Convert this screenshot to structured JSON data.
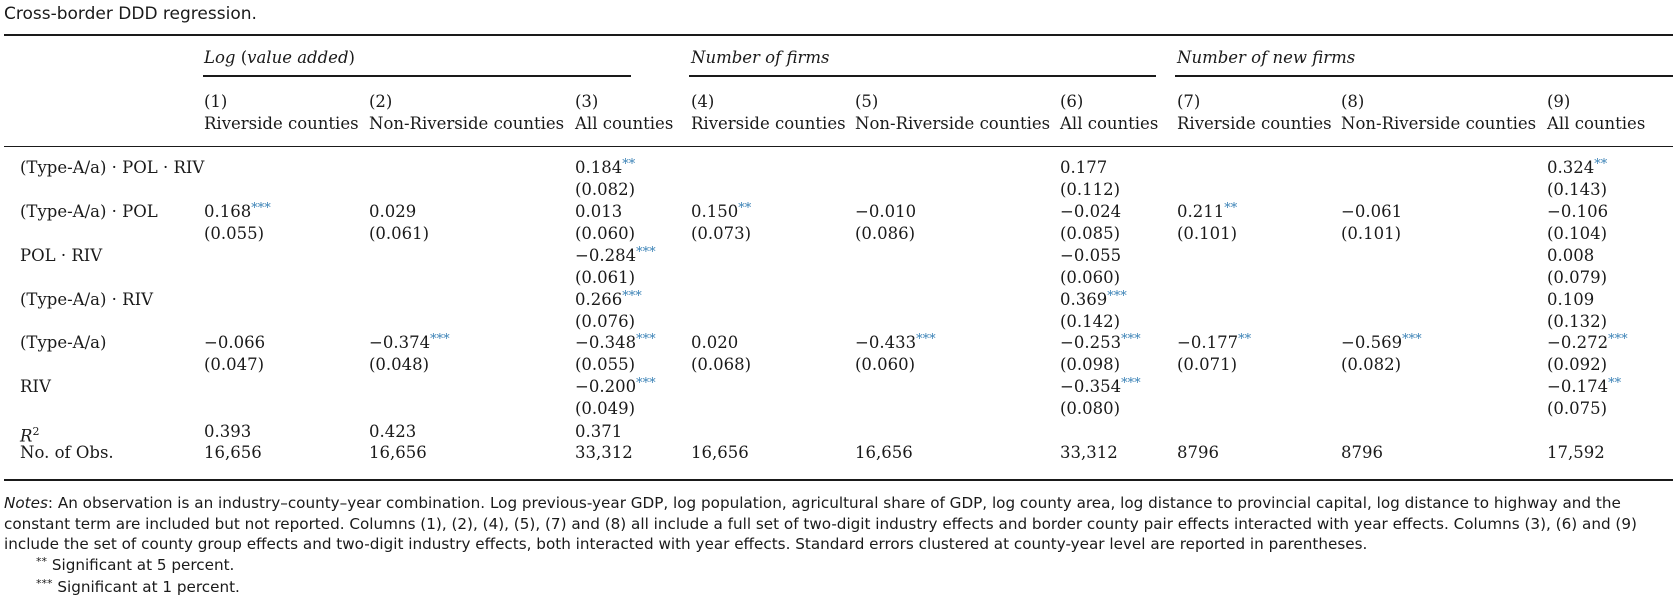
{
  "caption": "Cross-border DDD regression.",
  "groups": [
    {
      "label": "Log",
      "label_extra": " (value added)"
    },
    {
      "label": "Number of firms",
      "label_extra": ""
    },
    {
      "label": "Number of new firms",
      "label_extra": ""
    }
  ],
  "columns": [
    {
      "num": "(1)",
      "name": "Riverside counties"
    },
    {
      "num": "(2)",
      "name": "Non-Riverside counties"
    },
    {
      "num": "(3)",
      "name": "All counties"
    },
    {
      "num": "(4)",
      "name": "Riverside counties"
    },
    {
      "num": "(5)",
      "name": "Non-Riverside counties"
    },
    {
      "num": "(6)",
      "name": "All counties"
    },
    {
      "num": "(7)",
      "name": "Riverside counties"
    },
    {
      "num": "(8)",
      "name": "Non-Riverside counties"
    },
    {
      "num": "(9)",
      "name": "All counties"
    }
  ],
  "rows": [
    {
      "label": "(Type-A/a) · POL · RIV",
      "coef": [
        "",
        "",
        "0.184",
        "",
        "",
        "0.177",
        "",
        "",
        "0.324"
      ],
      "stars": [
        "",
        "",
        "**",
        "",
        "",
        "",
        "",
        "",
        "**"
      ],
      "se": [
        "",
        "",
        "(0.082)",
        "",
        "",
        "(0.112)",
        "",
        "",
        "(0.143)"
      ]
    },
    {
      "label": "(Type-A/a) · POL",
      "coef": [
        "0.168",
        "0.029",
        "0.013",
        "0.150",
        "−0.010",
        "−0.024",
        "0.211",
        "−0.061",
        "−0.106"
      ],
      "stars": [
        "***",
        "",
        "",
        "**",
        "",
        "",
        "**",
        "",
        ""
      ],
      "se": [
        "(0.055)",
        "(0.061)",
        "(0.060)",
        "(0.073)",
        "(0.086)",
        "(0.085)",
        "(0.101)",
        "(0.101)",
        "(0.104)"
      ]
    },
    {
      "label": "POL · RIV",
      "coef": [
        "",
        "",
        "−0.284",
        "",
        "",
        "−0.055",
        "",
        "",
        "0.008"
      ],
      "stars": [
        "",
        "",
        "***",
        "",
        "",
        "",
        "",
        "",
        ""
      ],
      "se": [
        "",
        "",
        "(0.061)",
        "",
        "",
        "(0.060)",
        "",
        "",
        "(0.079)"
      ]
    },
    {
      "label": "(Type-A/a) · RIV",
      "coef": [
        "",
        "",
        "0.266",
        "",
        "",
        "0.369",
        "",
        "",
        "0.109"
      ],
      "stars": [
        "",
        "",
        "***",
        "",
        "",
        "***",
        "",
        "",
        ""
      ],
      "se": [
        "",
        "",
        "(0.076)",
        "",
        "",
        "(0.142)",
        "",
        "",
        "(0.132)"
      ]
    },
    {
      "label": "(Type-A/a)",
      "coef": [
        "−0.066",
        "−0.374",
        "−0.348",
        "0.020",
        "−0.433",
        "−0.253",
        "−0.177",
        "−0.569",
        "−0.272"
      ],
      "stars": [
        "",
        "***",
        "***",
        "",
        "***",
        "***",
        "**",
        "***",
        "***"
      ],
      "se": [
        "(0.047)",
        "(0.048)",
        "(0.055)",
        "(0.068)",
        "(0.060)",
        "(0.098)",
        "(0.071)",
        "(0.082)",
        "(0.092)"
      ]
    },
    {
      "label": "RIV",
      "coef": [
        "",
        "",
        "−0.200",
        "",
        "",
        "−0.354",
        "",
        "",
        "−0.174"
      ],
      "stars": [
        "",
        "",
        "***",
        "",
        "",
        "***",
        "",
        "",
        "**"
      ],
      "se": [
        "",
        "",
        "(0.049)",
        "",
        "",
        "(0.080)",
        "",
        "",
        "(0.075)"
      ]
    }
  ],
  "r2": {
    "label": "R",
    "sup": "2",
    "values": [
      "0.393",
      "0.423",
      "0.371",
      "",
      "",
      "",
      "",
      "",
      ""
    ]
  },
  "nobs": {
    "label": "No. of Obs.",
    "values": [
      "16,656",
      "16,656",
      "33,312",
      "16,656",
      "16,656",
      "33,312",
      "8796",
      "8796",
      "17,592"
    ]
  },
  "notes": {
    "label": "Notes",
    "text": ": An observation is an industry–county–year combination. Log previous-year GDP, log population, agricultural share of GDP, log county area, log distance to provincial capital, log distance to highway and the constant term are included but not reported. Columns (1), (2), (4), (5), (7) and (8) all include a full set of two-digit industry effects and border county pair effects interacted with year effects. Columns (3), (6) and (9) include the set of county group effects and two-digit industry effects, both interacted with year effects. Standard errors clustered at county-year level are reported in parentheses.",
    "footnotes": [
      {
        "mark": "**",
        "text": " Significant at 5 percent."
      },
      {
        "mark": "***",
        "text": " Significant at 1 percent."
      }
    ]
  },
  "colors": {
    "star": "#3b82b6",
    "text": "#1a1a1a",
    "rule": "#1a1a1a"
  }
}
